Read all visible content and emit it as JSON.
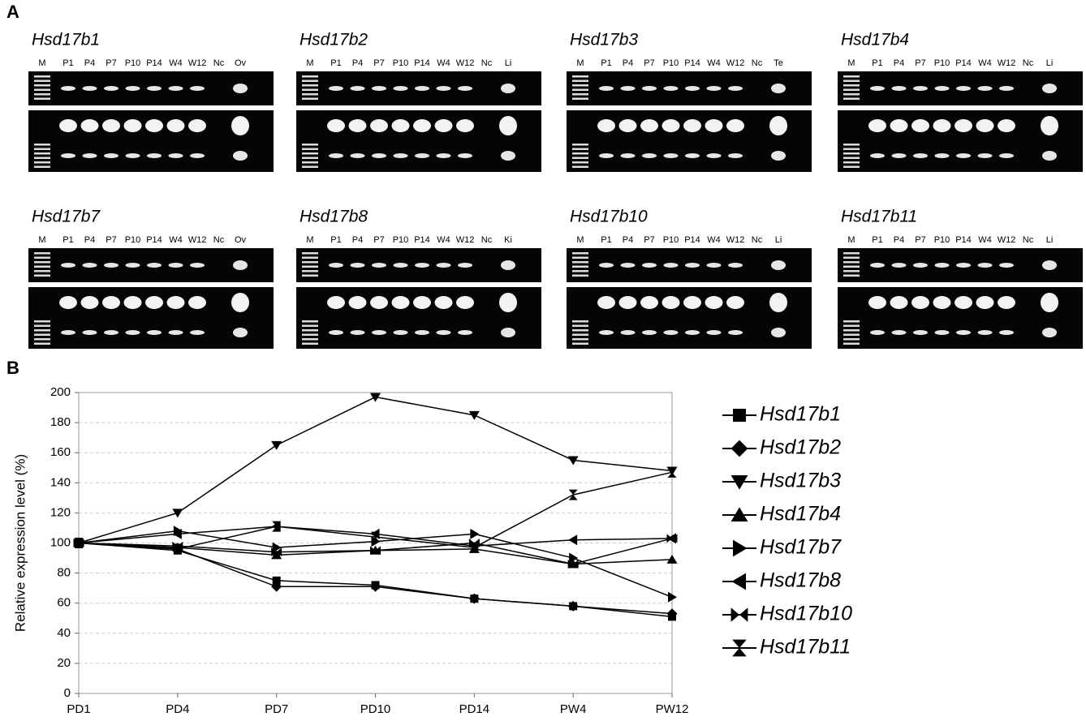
{
  "panel_a": {
    "label": "A",
    "gels": [
      {
        "title": "Hsd17b1",
        "lanes": [
          "M",
          "P1",
          "P4",
          "P7",
          "P10",
          "P14",
          "W4",
          "W12",
          "Nc",
          "Ov"
        ]
      },
      {
        "title": "Hsd17b2",
        "lanes": [
          "M",
          "P1",
          "P4",
          "P7",
          "P10",
          "P14",
          "W4",
          "W12",
          "Nc",
          "Li"
        ]
      },
      {
        "title": "Hsd17b3",
        "lanes": [
          "M",
          "P1",
          "P4",
          "P7",
          "P10",
          "P14",
          "W4",
          "W12",
          "Nc",
          "Te"
        ]
      },
      {
        "title": "Hsd17b4",
        "lanes": [
          "M",
          "P1",
          "P4",
          "P7",
          "P10",
          "P14",
          "W4",
          "W12",
          "Nc",
          "Li"
        ]
      },
      {
        "title": "Hsd17b7",
        "lanes": [
          "M",
          "P1",
          "P4",
          "P7",
          "P10",
          "P14",
          "W4",
          "W12",
          "Nc",
          "Ov"
        ]
      },
      {
        "title": "Hsd17b8",
        "lanes": [
          "M",
          "P1",
          "P4",
          "P7",
          "P10",
          "P14",
          "W4",
          "W12",
          "Nc",
          "Ki"
        ]
      },
      {
        "title": "Hsd17b10",
        "lanes": [
          "M",
          "P1",
          "P4",
          "P7",
          "P10",
          "P14",
          "W4",
          "W12",
          "Nc",
          "Li"
        ]
      },
      {
        "title": "Hsd17b11",
        "lanes": [
          "M",
          "P1",
          "P4",
          "P7",
          "P10",
          "P14",
          "W4",
          "W12",
          "Nc",
          "Li"
        ]
      }
    ]
  },
  "panel_b_label": "B",
  "chart_data": {
    "type": "line",
    "y_label": "Relative expression level (%)",
    "categories": [
      "PD1",
      "PD4",
      "PD7",
      "PD10",
      "PD14",
      "PW4",
      "PW12"
    ],
    "ylim": [
      0,
      200
    ],
    "yticks": [
      0,
      20,
      40,
      60,
      80,
      100,
      120,
      140,
      160,
      180,
      200
    ],
    "grid": true,
    "legend": "right",
    "series": [
      {
        "name": "Hsd17b1",
        "color": "#000000",
        "marker": "square",
        "values": [
          100,
          95,
          75,
          72,
          63,
          58,
          51
        ]
      },
      {
        "name": "Hsd17b2",
        "color": "#000000",
        "marker": "diamond",
        "values": [
          100,
          96,
          71,
          71,
          63,
          58,
          53
        ]
      },
      {
        "name": "Hsd17b3",
        "color": "#000000",
        "marker": "triangle-down",
        "values": [
          100,
          120,
          165,
          197,
          185,
          155,
          148
        ]
      },
      {
        "name": "Hsd17b4",
        "color": "#000000",
        "marker": "triangle-up",
        "values": [
          100,
          97,
          92,
          95,
          96,
          86,
          89
        ]
      },
      {
        "name": "Hsd17b7",
        "color": "#000000",
        "marker": "triangle-right",
        "values": [
          100,
          108,
          97,
          101,
          106,
          90,
          64
        ]
      },
      {
        "name": "Hsd17b8",
        "color": "#000000",
        "marker": "triangle-left",
        "values": [
          100,
          106,
          111,
          106,
          98,
          102,
          103
        ]
      },
      {
        "name": "Hsd17b10",
        "color": "#000000",
        "marker": "bowtie",
        "values": [
          100,
          98,
          94,
          95,
          100,
          86,
          103
        ]
      },
      {
        "name": "Hsd17b11",
        "color": "#000000",
        "marker": "hourglass",
        "values": [
          100,
          96,
          111,
          104,
          97,
          132,
          147
        ]
      }
    ]
  }
}
